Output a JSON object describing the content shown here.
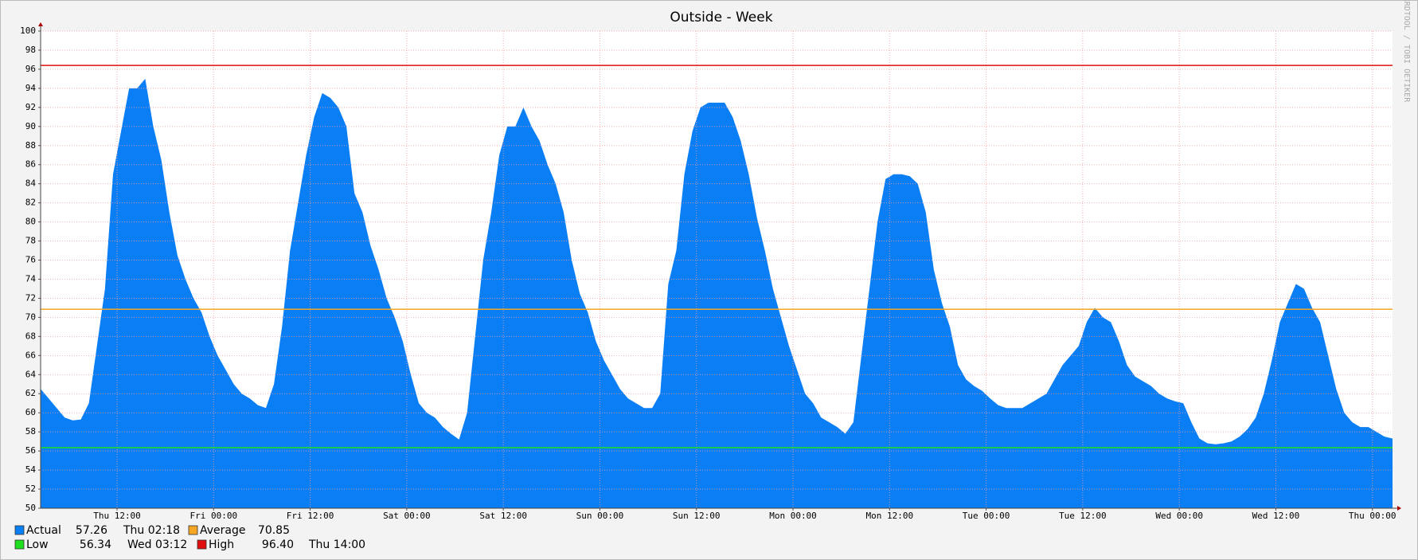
{
  "chart_data": {
    "type": "area",
    "title": "Outside - Week",
    "watermark": "RRDTOOL / TOBI OETIKER",
    "x": [
      0,
      1,
      2,
      3,
      4,
      5,
      6,
      7,
      8,
      9,
      10,
      11,
      12,
      13,
      14,
      15,
      16,
      17,
      18,
      19,
      20,
      21,
      22,
      23,
      24,
      25,
      26,
      27,
      28,
      29,
      30,
      31,
      32,
      33,
      34,
      35,
      36,
      37,
      38,
      39,
      40,
      41,
      42,
      43,
      44,
      45,
      46,
      47,
      48,
      49,
      50,
      51,
      52,
      53,
      54,
      55,
      56,
      57,
      58,
      59,
      60,
      61,
      62,
      63,
      64,
      65,
      66,
      67,
      68,
      69,
      70,
      71,
      72,
      73,
      74,
      75,
      76,
      77,
      78,
      79,
      80,
      81,
      82,
      83,
      84,
      85,
      86,
      87,
      88,
      89,
      90,
      91,
      92,
      93,
      94,
      95,
      96,
      97,
      98,
      99,
      100,
      101,
      102,
      103,
      104,
      105,
      106,
      107,
      108,
      109,
      110,
      111,
      112,
      113,
      114,
      115,
      116,
      117,
      118,
      119,
      120,
      121,
      122,
      123,
      124,
      125,
      126,
      127,
      128,
      129,
      130,
      131,
      132,
      133,
      134,
      135,
      136,
      137,
      138,
      139,
      140,
      141,
      142,
      143,
      144,
      145,
      146,
      147,
      148,
      149,
      150,
      151,
      152,
      153,
      154,
      155,
      156,
      157,
      158,
      159,
      160,
      161,
      162,
      163,
      164,
      165,
      166,
      167,
      168
    ],
    "series": [
      {
        "name": "Actual",
        "color": "#0a7ef5",
        "values": [
          62.5,
          61.5,
          60.5,
          59.5,
          59.2,
          59.3,
          61,
          67,
          73,
          85,
          89.5,
          94,
          94,
          95,
          90,
          86.5,
          81,
          76.5,
          74,
          72,
          70.5,
          68,
          66,
          64.5,
          63,
          62,
          61.5,
          60.8,
          60.5,
          63,
          69,
          77,
          82,
          87,
          91,
          93.5,
          93,
          92,
          90,
          83,
          81,
          77.5,
          75,
          72,
          70,
          67.5,
          64,
          61,
          60,
          59.5,
          58.5,
          57.8,
          57.2,
          60,
          68,
          76,
          81,
          87,
          90,
          90,
          92,
          90,
          88.5,
          86,
          84,
          81,
          76,
          72.5,
          70.5,
          67.5,
          65.5,
          64,
          62.5,
          61.5,
          61,
          60.5,
          60.5,
          62,
          73.5,
          77,
          85,
          89.5,
          92,
          92.5,
          92.5,
          92.5,
          91,
          88.5,
          85,
          80.5,
          77,
          73,
          70,
          67,
          64.5,
          62,
          61,
          59.5,
          59,
          58.5,
          57.8,
          59,
          66,
          73,
          80,
          84.5,
          85,
          85,
          84.8,
          84,
          81,
          75,
          71.5,
          69,
          65,
          63.5,
          62.8,
          62.3,
          61.5,
          60.8,
          60.5,
          60.5,
          60.5,
          61,
          61.5,
          62,
          63.5,
          65,
          66,
          67,
          69.5,
          71,
          70,
          69.5,
          67.5,
          65,
          63.8,
          63.3,
          62.8,
          62,
          61.5,
          61.2,
          61,
          59,
          57.3,
          56.8,
          56.7,
          56.8,
          57,
          57.5,
          58.3,
          59.5,
          62,
          65.5,
          69.5,
          71.5,
          73.5,
          73,
          71,
          69.5,
          66,
          62.5,
          60,
          59,
          58.5,
          58.5,
          58,
          57.5,
          57.3
        ],
        "summary": {
          "value": 57.26,
          "time": "Thu 02:18"
        }
      }
    ],
    "lines": [
      {
        "name": "Average",
        "color": "#f5a623",
        "value": 70.85
      },
      {
        "name": "Low",
        "color": "#1ee01e",
        "value": 56.34,
        "time": "Wed 03:12"
      },
      {
        "name": "High",
        "color": "#e01010",
        "value": 96.4,
        "label": "96.40",
        "time": "Thu 14:00"
      }
    ],
    "xlim": [
      0,
      168
    ],
    "xticks": [
      {
        "value": 9.5,
        "label": "Thu 12:00"
      },
      {
        "value": 21.5,
        "label": "Fri 00:00"
      },
      {
        "value": 33.5,
        "label": "Fri 12:00"
      },
      {
        "value": 45.5,
        "label": "Sat 00:00"
      },
      {
        "value": 57.5,
        "label": "Sat 12:00"
      },
      {
        "value": 69.5,
        "label": "Sun 00:00"
      },
      {
        "value": 81.5,
        "label": "Sun 12:00"
      },
      {
        "value": 93.5,
        "label": "Mon 00:00"
      },
      {
        "value": 105.5,
        "label": "Mon 12:00"
      },
      {
        "value": 117.5,
        "label": "Tue 00:00"
      },
      {
        "value": 129.5,
        "label": "Tue 12:00"
      },
      {
        "value": 141.5,
        "label": "Wed 00:00"
      },
      {
        "value": 153.5,
        "label": "Wed 12:00"
      },
      {
        "value": 165.5,
        "label": "Thu 00:00"
      }
    ],
    "ylim": [
      50,
      100
    ],
    "yticks": [
      50,
      52,
      54,
      56,
      58,
      60,
      62,
      64,
      66,
      68,
      70,
      72,
      74,
      76,
      78,
      80,
      82,
      84,
      86,
      88,
      90,
      92,
      94,
      96,
      98,
      100
    ],
    "grid": true
  }
}
